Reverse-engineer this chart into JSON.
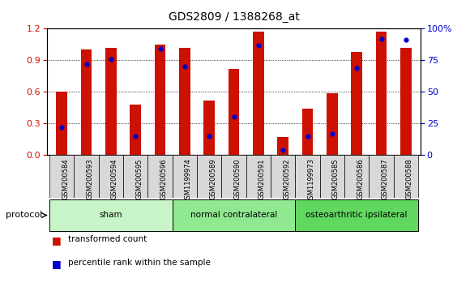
{
  "title": "GDS2809 / 1388268_at",
  "samples": [
    "GSM200584",
    "GSM200593",
    "GSM200594",
    "GSM200595",
    "GSM200596",
    "GSM1199974",
    "GSM200589",
    "GSM200590",
    "GSM200591",
    "GSM200592",
    "GSM1199973",
    "GSM200585",
    "GSM200586",
    "GSM200587",
    "GSM200588"
  ],
  "transformed_count": [
    0.6,
    1.0,
    1.02,
    0.48,
    1.05,
    1.02,
    0.52,
    0.82,
    1.17,
    0.17,
    0.44,
    0.59,
    0.98,
    1.17,
    1.02
  ],
  "percentile_rank": [
    22,
    72,
    76,
    15,
    84,
    70,
    15,
    30,
    87,
    4,
    15,
    17,
    69,
    92,
    91
  ],
  "groups": {
    "sham": [
      0,
      1,
      2,
      3,
      4
    ],
    "normal contralateral": [
      5,
      6,
      7,
      8,
      9
    ],
    "osteoarthritic ipsilateral": [
      10,
      11,
      12,
      13,
      14
    ]
  },
  "group_colors": {
    "sham": "#c8f5c8",
    "normal contralateral": "#90e890",
    "osteoarthritic ipsilateral": "#60d860"
  },
  "bar_color": "#cc1100",
  "dot_color": "#0000cc",
  "ylim_left": [
    0,
    1.2
  ],
  "ylim_right": [
    0,
    100
  ],
  "yticks_left": [
    0,
    0.3,
    0.6,
    0.9,
    1.2
  ],
  "yticks_right": [
    0,
    25,
    50,
    75,
    100
  ],
  "left_tick_color": "#cc1100",
  "right_tick_color": "#0000cc",
  "bar_width": 0.45,
  "bg_color": "#ffffff",
  "grid_color": "#000000",
  "xtick_bg_color": "#d8d8d8",
  "legend_items": [
    "transformed count",
    "percentile rank within the sample"
  ],
  "legend_colors": [
    "#cc1100",
    "#0000cc"
  ]
}
